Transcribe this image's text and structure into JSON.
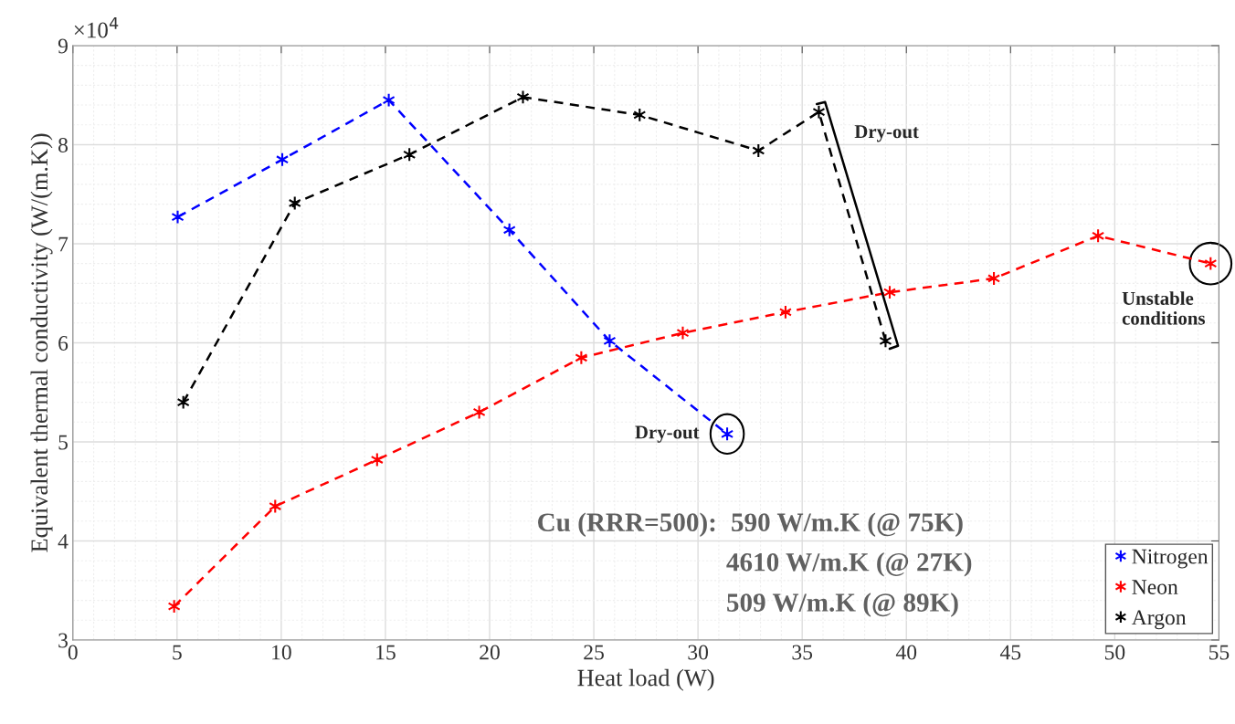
{
  "chart_data": {
    "type": "line",
    "xlabel": "Heat load (W)",
    "ylabel": "Equivalent thermal conductivity (W/(m.K))",
    "xlim": [
      0,
      55
    ],
    "xticks": [
      0,
      5,
      10,
      15,
      20,
      25,
      30,
      35,
      40,
      45,
      50,
      55
    ],
    "ylim": [
      3,
      9
    ],
    "yticks": [
      3,
      4,
      5,
      6,
      7,
      8,
      9
    ],
    "grid": true,
    "legend": "bottom right",
    "marker": "cross",
    "line_style": "dashed",
    "series": [
      {
        "name": "Nitrogen",
        "color": "#0000ff",
        "x": [
          5.03,
          10.05,
          15.16,
          20.95,
          25.76,
          31.4
        ],
        "values": [
          7.27,
          7.85,
          8.45,
          7.14,
          6.02,
          5.08
        ]
      },
      {
        "name": "Neon",
        "color": "#ff0000",
        "x": [
          4.86,
          9.71,
          14.6,
          19.5,
          24.4,
          29.27,
          34.2,
          39.2,
          44.2,
          49.2,
          54.6
        ],
        "values": [
          3.34,
          4.35,
          4.82,
          5.3,
          5.85,
          6.1,
          6.31,
          6.51,
          6.65,
          7.08,
          6.8
        ]
      },
      {
        "name": "Argon",
        "color": "#000000",
        "x": [
          5.3,
          10.65,
          16.15,
          21.6,
          27.2,
          32.9,
          35.8,
          39.0
        ],
        "values": [
          5.4,
          7.41,
          7.9,
          8.48,
          8.3,
          7.94,
          8.33,
          6.02
        ]
      }
    ],
    "annotations": [
      "×10$^{4}$",
      {
        "text": "Dry-out",
        "x": 31.4,
        "y": 5.08
      },
      {
        "text": "Dry-out",
        "x": 35.8,
        "y": 8.33
      },
      {
        "text": "Unstable conditions",
        "x": 54.6,
        "y": 6.8
      },
      "Cu (RRR=500):",
      "590 W/m.K (@ 75K)",
      "4610 W/m.K (@ 27K)",
      "509 W/m.K (@ 89K)"
    ]
  }
}
